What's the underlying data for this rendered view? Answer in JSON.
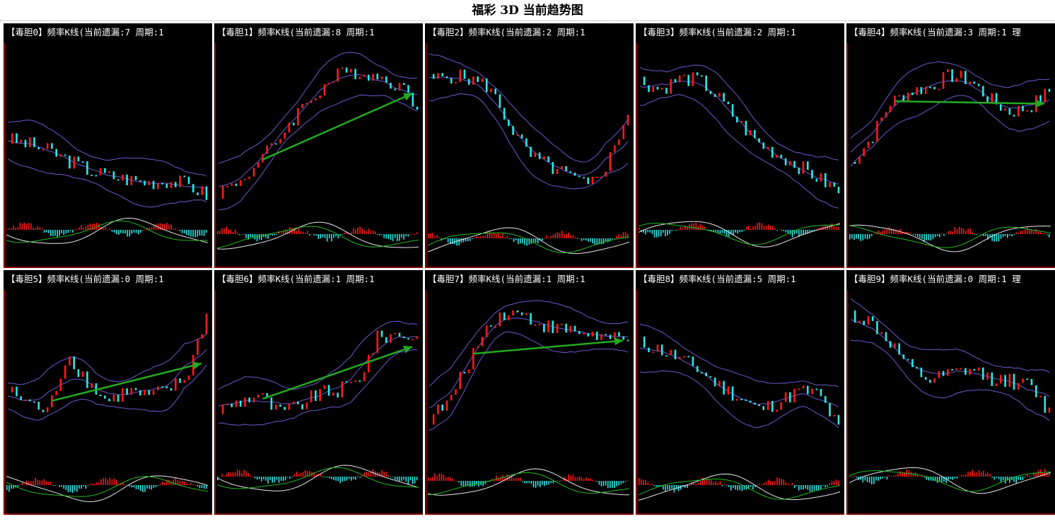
{
  "title": "福彩 3D 当前趋势图",
  "colors": {
    "background": "#000000",
    "border": "#b00000",
    "candle_up": "#ff1a1a",
    "candle_down": "#2ee6e6",
    "band": "#6a5acd",
    "trend_arrow": "#22aa22",
    "macd_fast": "#e8e8e8",
    "macd_slow": "#22bb22"
  },
  "panels": [
    {
      "label": "【毒胆0】频率K线(当前遗漏:7 周期:1"
    },
    {
      "label": "【毒胆1】频率K线(当前遗漏:8 周期:1"
    },
    {
      "label": "【毒胆2】频率K线(当前遗漏:2 周期:1"
    },
    {
      "label": "【毒胆3】频率K线(当前遗漏:2 周期:1"
    },
    {
      "label": "【毒胆4】频率K线(当前遗漏:3 周期:1 理"
    },
    {
      "label": "【毒胆5】频率K线(当前遗漏:0 周期:1"
    },
    {
      "label": "【毒胆6】频率K线(当前遗漏:1 周期:1"
    },
    {
      "label": "【毒胆7】频率K线(当前遗漏:1 周期:1"
    },
    {
      "label": "【毒胆8】频率K线(当前遗漏:5 周期:1"
    },
    {
      "label": "【毒胆9】频率K线(当前遗漏:0 周期:1 理"
    }
  ],
  "chart_data": [
    {
      "type": "candlestick",
      "trend": [
        0.45,
        0.42,
        0.38,
        0.32,
        0.26,
        0.22,
        0.2,
        0.18,
        0.19,
        0.17,
        0.1
      ],
      "arrow": false
    },
    {
      "type": "candlestick",
      "trend": [
        0.12,
        0.18,
        0.3,
        0.45,
        0.62,
        0.75,
        0.85,
        0.88,
        0.84,
        0.8,
        0.66
      ],
      "arrow": true
    },
    {
      "type": "candlestick",
      "trend": [
        0.82,
        0.85,
        0.83,
        0.78,
        0.55,
        0.35,
        0.28,
        0.22,
        0.15,
        0.3,
        0.62
      ],
      "arrow": false
    },
    {
      "type": "candlestick",
      "trend": [
        0.82,
        0.76,
        0.83,
        0.82,
        0.7,
        0.55,
        0.42,
        0.35,
        0.28,
        0.2,
        0.12
      ],
      "arrow": false
    },
    {
      "type": "candlestick",
      "trend": [
        0.3,
        0.45,
        0.68,
        0.75,
        0.78,
        0.85,
        0.82,
        0.7,
        0.62,
        0.65,
        0.75
      ],
      "arrow": true
    },
    {
      "type": "candlestick",
      "trend": [
        0.42,
        0.35,
        0.28,
        0.65,
        0.48,
        0.35,
        0.42,
        0.38,
        0.42,
        0.5,
        0.9
      ],
      "arrow": true
    },
    {
      "type": "candlestick",
      "trend": [
        0.3,
        0.35,
        0.4,
        0.28,
        0.32,
        0.4,
        0.42,
        0.48,
        0.75,
        0.78,
        0.75
      ],
      "arrow": true
    },
    {
      "type": "candlestick",
      "trend": [
        0.25,
        0.35,
        0.6,
        0.85,
        0.92,
        0.88,
        0.82,
        0.8,
        0.78,
        0.75,
        0.72
      ],
      "arrow": true
    },
    {
      "type": "candlestick",
      "trend": [
        0.72,
        0.68,
        0.62,
        0.55,
        0.45,
        0.38,
        0.3,
        0.35,
        0.42,
        0.4,
        0.18
      ],
      "arrow": false
    },
    {
      "type": "candlestick",
      "trend": [
        0.9,
        0.85,
        0.72,
        0.55,
        0.48,
        0.52,
        0.55,
        0.5,
        0.48,
        0.45,
        0.28
      ],
      "arrow": false
    }
  ]
}
